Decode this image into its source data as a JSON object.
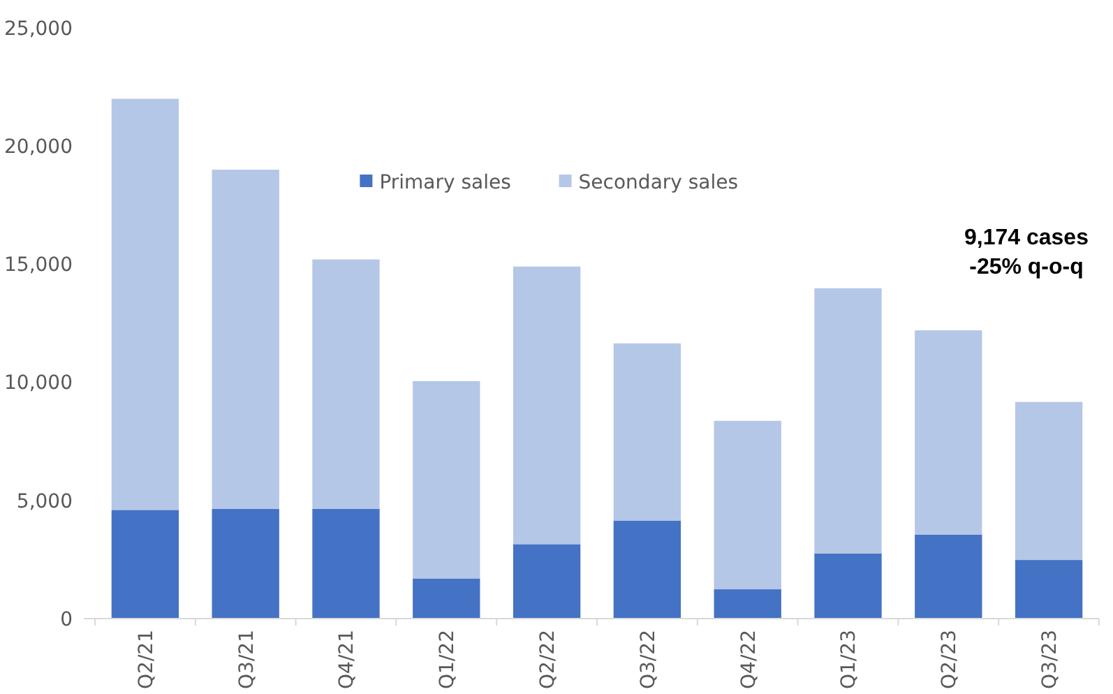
{
  "chart_data": {
    "type": "bar",
    "stacked": true,
    "categories": [
      "Q2/21",
      "Q3/21",
      "Q4/21",
      "Q1/22",
      "Q2/22",
      "Q3/22",
      "Q4/22",
      "Q1/23",
      "Q2/23",
      "Q3/23"
    ],
    "series": [
      {
        "name": "Primary sales",
        "color": "#4472c4",
        "values": [
          4600,
          4650,
          4650,
          1700,
          3150,
          4150,
          1240,
          2760,
          3560,
          2480
        ]
      },
      {
        "name": "Secondary sales",
        "color": "#b4c7e7",
        "values": [
          17400,
          14350,
          10550,
          8350,
          11750,
          7500,
          7130,
          11220,
          8640,
          6690
        ]
      }
    ],
    "ylim": [
      0,
      25000
    ],
    "yticks": [
      {
        "value": 0,
        "label": "0"
      },
      {
        "value": 5000,
        "label": "5,000"
      },
      {
        "value": 10000,
        "label": "10,000"
      },
      {
        "value": 15000,
        "label": "15,000"
      },
      {
        "value": 20000,
        "label": "20,000"
      },
      {
        "value": 25000,
        "label": "25,000"
      }
    ],
    "grid": false,
    "legend": "top",
    "annotations": [
      "9,174 cases\n-25% q-o-q"
    ]
  }
}
